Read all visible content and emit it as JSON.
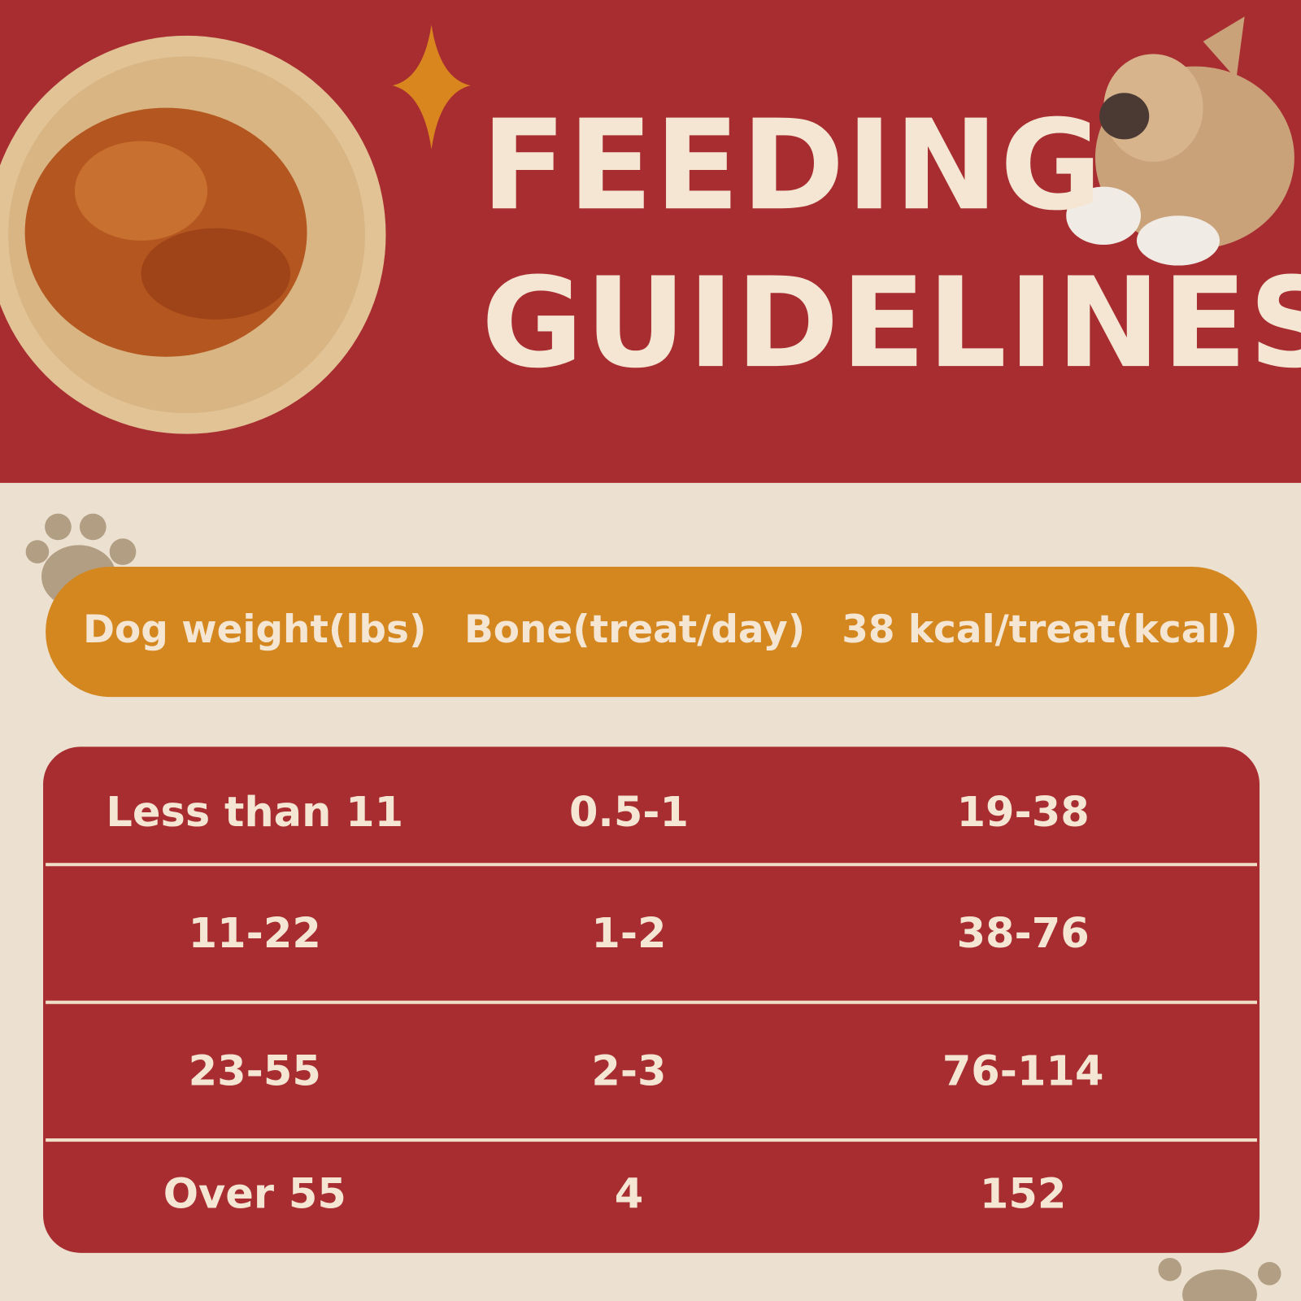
{
  "header": {
    "title_line1": "FEEDING",
    "title_line2": "GUIDELINES"
  },
  "table": {
    "columns": [
      "Dog weight(lbs)",
      "Bone(treat/day)",
      "38 kcal/treat(kcal)"
    ],
    "rows": [
      [
        "Less than 11",
        "0.5-1",
        "19-38"
      ],
      [
        "11-22",
        "1-2",
        "38-76"
      ],
      [
        "23-55",
        "2-3",
        "76-114"
      ],
      [
        "Over 55",
        "4",
        "152"
      ]
    ]
  }
}
